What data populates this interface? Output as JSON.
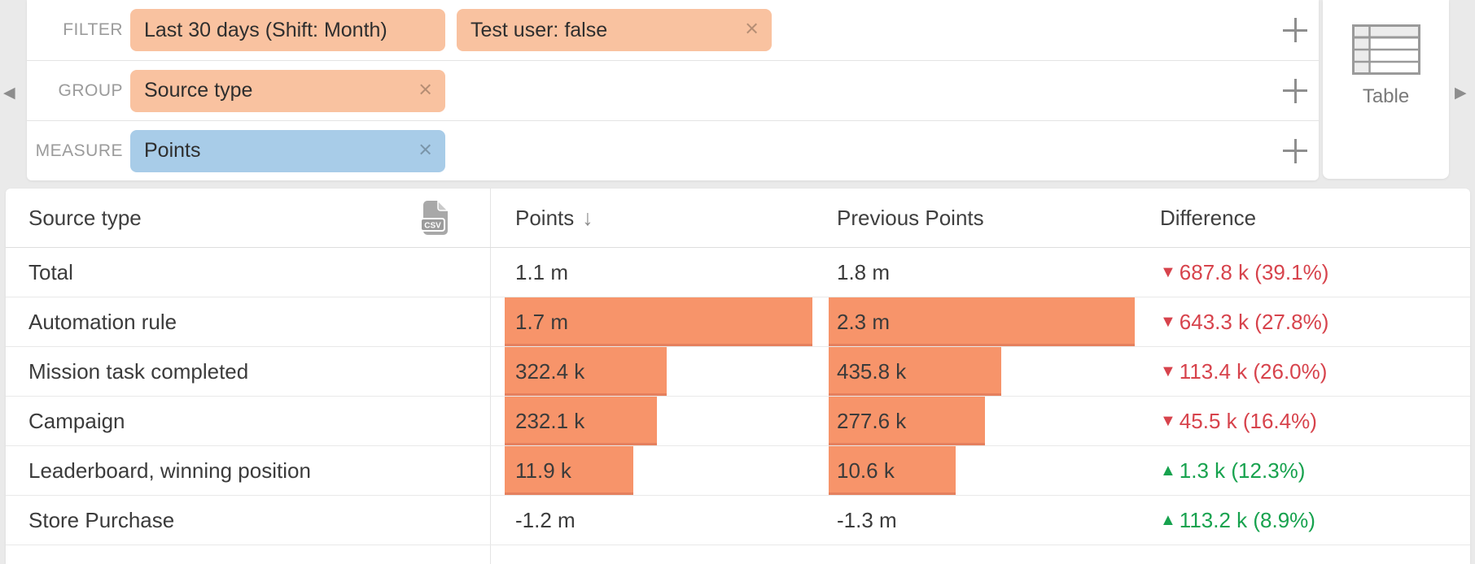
{
  "icons": {
    "back": "◀",
    "forward": "▶",
    "remove": "×",
    "sort_desc": "↓"
  },
  "colors": {
    "tag_peach": "#F9C2A0",
    "tag_blue": "#A8CCE8",
    "bar_orange": "#F7946A",
    "negative_red": "#D7434C",
    "positive_green": "#17A24E",
    "background": "#EAEAEA"
  },
  "query_builder": {
    "rows": [
      {
        "label": "FILTER",
        "tags": [
          {
            "text": "Last 30 days (Shift: Month)",
            "color": "peach",
            "removable": false
          },
          {
            "text": "Test user: false",
            "color": "peach",
            "removable": true
          }
        ]
      },
      {
        "label": "GROUP",
        "tags": [
          {
            "text": "Source type",
            "color": "peach",
            "removable": true
          }
        ]
      },
      {
        "label": "MEASURE",
        "tags": [
          {
            "text": "Points",
            "color": "blue",
            "removable": true
          }
        ]
      }
    ]
  },
  "view_switcher": {
    "label": "Table"
  },
  "table": {
    "headers": {
      "source_type": "Source type",
      "points": "Points",
      "previous_points": "Previous Points",
      "difference": "Difference"
    },
    "sort": {
      "column": "Points",
      "direction": "desc"
    },
    "csv_badge": "CSV",
    "trend_glyphs": {
      "down": "▼",
      "up": "▲"
    },
    "rows": [
      {
        "label": "Total",
        "points": "1.1 m",
        "points_bar": 0,
        "previous": "1.8 m",
        "previous_bar": 0,
        "diff": "687.8 k (39.1%)",
        "trend": "down"
      },
      {
        "label": "Automation rule",
        "points": "1.7 m",
        "points_bar": 100,
        "previous": "2.3 m",
        "previous_bar": 99.4,
        "diff": "643.3 k (27.8%)",
        "trend": "down"
      },
      {
        "label": "Mission task completed",
        "points": "322.4 k",
        "points_bar": 52.6,
        "previous": "435.8 k",
        "previous_bar": 56.2,
        "diff": "113.4 k (26.0%)",
        "trend": "down"
      },
      {
        "label": "Campaign",
        "points": "232.1 k",
        "points_bar": 49.6,
        "previous": "277.6 k",
        "previous_bar": 50.7,
        "diff": "45.5 k (16.4%)",
        "trend": "down"
      },
      {
        "label": "Leaderboard, winning position",
        "points": "11.9 k",
        "points_bar": 41.8,
        "previous": "10.6 k",
        "previous_bar": 41.4,
        "diff": "1.3 k (12.3%)",
        "trend": "up"
      },
      {
        "label": "Store Purchase",
        "points": "-1.2 m",
        "points_bar": 0,
        "previous": "-1.3 m",
        "previous_bar": 0,
        "diff": "113.2 k (8.9%)",
        "trend": "up"
      }
    ]
  }
}
